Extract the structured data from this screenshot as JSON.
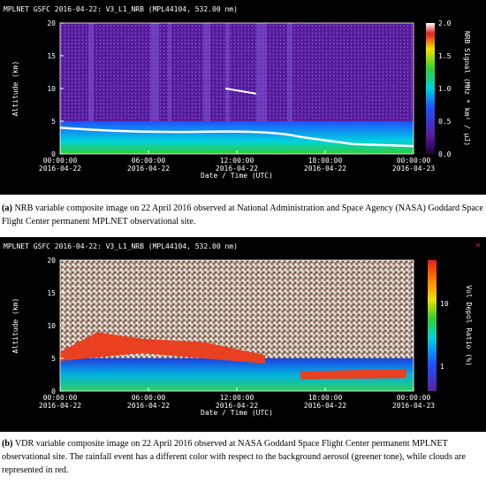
{
  "figures": [
    {
      "title": "MPLNET GSFC 2016-04-22:  V3_L1_NRB  (MPL44104, 532.00 nm)",
      "y_label": "Altitude (km)",
      "yticks": [
        0,
        5,
        10,
        15,
        20
      ],
      "x_label": "Date / Time (UTC)",
      "xticks": [
        [
          "00:00:00",
          "2016-04-22"
        ],
        [
          "06:00:00",
          "2016-04-22"
        ],
        [
          "12:00:00",
          "2016-04-22"
        ],
        [
          "18:00:00",
          "2016-04-22"
        ],
        [
          "00:00:00",
          "2016-04-23"
        ]
      ],
      "colorbar_label": "NRB Signal (MHz * km² / μJ)",
      "colorbar_ticks": [
        "2.0",
        "1.5",
        "1.0",
        "0.5",
        "0.0"
      ],
      "caption_label": "(a)",
      "caption": " NRB variable composite image on 22 April 2016 observed at National Administration and Space Agency (NASA) Goddard Space Flight Center permanent MPLNET observational site."
    },
    {
      "title": "MPLNET GSFC 2016-04-22:  V3_L1_NRB  (MPL44104, 532.00 nm)",
      "y_label": "Altitude (km)",
      "yticks": [
        0,
        5,
        10,
        15,
        20
      ],
      "x_label": "Date / Time (UTC)",
      "xticks": [
        [
          "00:00:00",
          "2016-04-22"
        ],
        [
          "06:00:00",
          "2016-04-22"
        ],
        [
          "12:00:00",
          "2016-04-22"
        ],
        [
          "18:00:00",
          "2016-04-22"
        ],
        [
          "00:00:00",
          "2016-04-23"
        ]
      ],
      "colorbar_label": "Vol Depol Ratio (%)",
      "colorbar_ticks": [
        "10",
        "1"
      ],
      "caption_label": "(b)",
      "caption": " VDR variable composite image on 22 April 2016 observed at NASA Goddard Space Flight Center permanent MPLNET observational site.  The rainfall event has a different color with respect to the background aerosol (greener tone), while clouds are represented in red."
    }
  ]
}
